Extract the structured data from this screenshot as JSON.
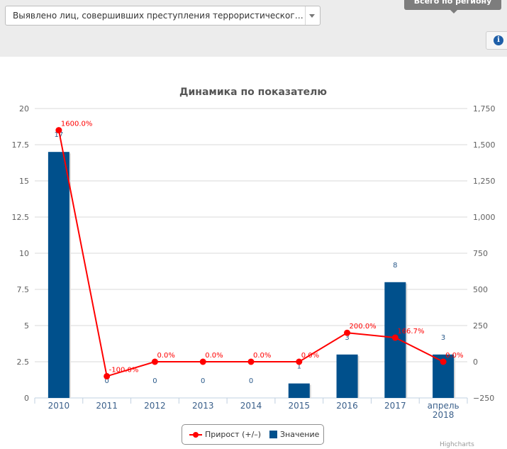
{
  "header": {
    "indicator_select_value": "Выявлено лиц, совершивших преступления террористического характ...",
    "tab_label": "Всего по региону",
    "info_icon": "info-icon"
  },
  "chart_data": {
    "type": "bar+line",
    "title": "Динамика по показателю",
    "categories": [
      "2010",
      "2011",
      "2012",
      "2013",
      "2014",
      "2015",
      "2016",
      "2017",
      "апрель\n2018"
    ],
    "series": [
      {
        "name": "Значение",
        "type": "bar",
        "axis": "left",
        "color": "#00508c",
        "values": [
          17,
          0,
          0,
          0,
          0,
          1,
          3,
          8,
          3
        ],
        "labels": [
          "17",
          "0",
          "0",
          "0",
          "0",
          "1",
          "3",
          "8",
          "3"
        ]
      },
      {
        "name": "Прирост (+/–)",
        "type": "line",
        "axis": "right",
        "color": "#ff0000",
        "values": [
          1600,
          -100,
          0,
          0,
          0,
          0,
          200,
          166.7,
          0
        ],
        "labels": [
          "1600.0%",
          "-100.0%",
          "0.0%",
          "0.0%",
          "0.0%",
          "0.0%",
          "200.0%",
          "166.7%",
          "0.0%"
        ]
      }
    ],
    "y_left": {
      "ylim": [
        0,
        20
      ],
      "ticks": [
        "0",
        "2.5",
        "5",
        "7.5",
        "10",
        "12.5",
        "15",
        "17.5",
        "20"
      ]
    },
    "y_right": {
      "ylim": [
        -250,
        1750
      ],
      "ticks": [
        "−250",
        "0",
        "250",
        "500",
        "750",
        "1,000",
        "1,250",
        "1,500",
        "1,750"
      ]
    },
    "grid": true,
    "legend_position": "bottom-center"
  },
  "credits": "Highcharts"
}
